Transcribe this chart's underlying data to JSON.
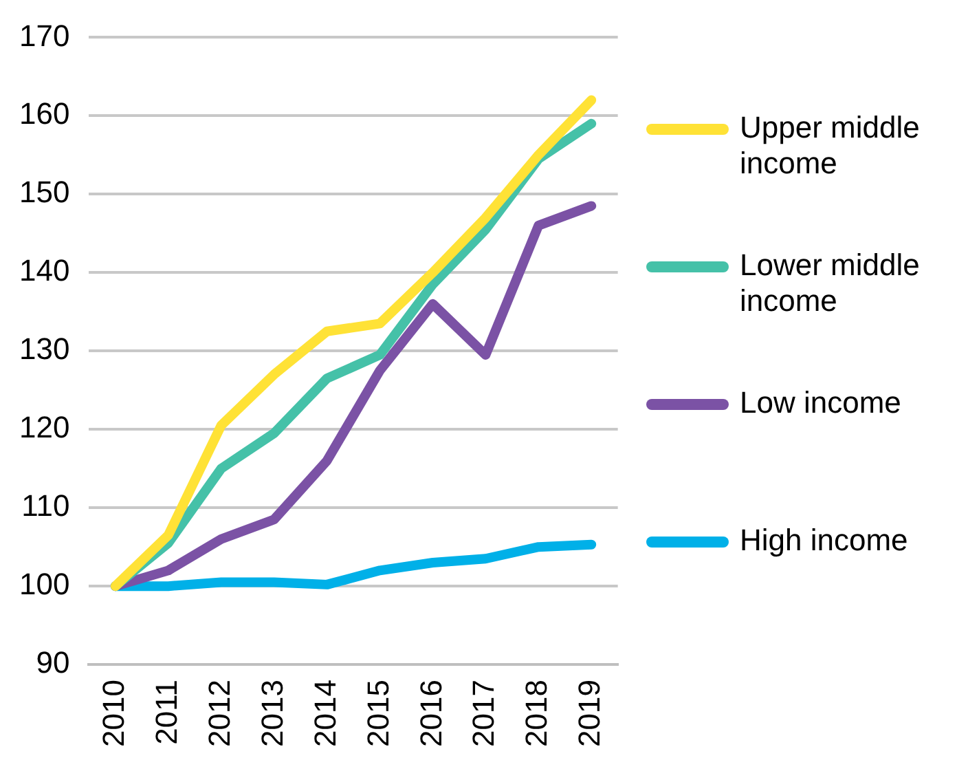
{
  "chart_data": {
    "type": "line",
    "categories": [
      "2010",
      "2011",
      "2012",
      "2013",
      "2014",
      "2015",
      "2016",
      "2017",
      "2018",
      "2019"
    ],
    "series": [
      {
        "name": "Upper middle income",
        "color": "#ffe236",
        "values": [
          100,
          106.5,
          120.5,
          127,
          132.5,
          133.5,
          140,
          147,
          155,
          162
        ]
      },
      {
        "name": "Lower middle income",
        "color": "#45c1a8",
        "values": [
          100,
          105.5,
          115,
          119.5,
          126.5,
          129.5,
          138.5,
          145.5,
          154.5,
          159
        ]
      },
      {
        "name": "Low income",
        "color": "#7b52a5",
        "values": [
          100,
          102,
          106,
          108.5,
          116,
          127.5,
          136,
          129.5,
          146,
          148.5
        ]
      },
      {
        "name": "High income",
        "color": "#00b0e8",
        "values": [
          100,
          100,
          100.5,
          100.5,
          100.2,
          102,
          103,
          103.5,
          105,
          105.3
        ]
      }
    ],
    "ylim": [
      90,
      170
    ],
    "yticks": [
      90,
      100,
      110,
      120,
      130,
      140,
      150,
      160,
      170
    ],
    "grid": "y",
    "legend": "right",
    "marker": "none",
    "line_style": "solid"
  }
}
